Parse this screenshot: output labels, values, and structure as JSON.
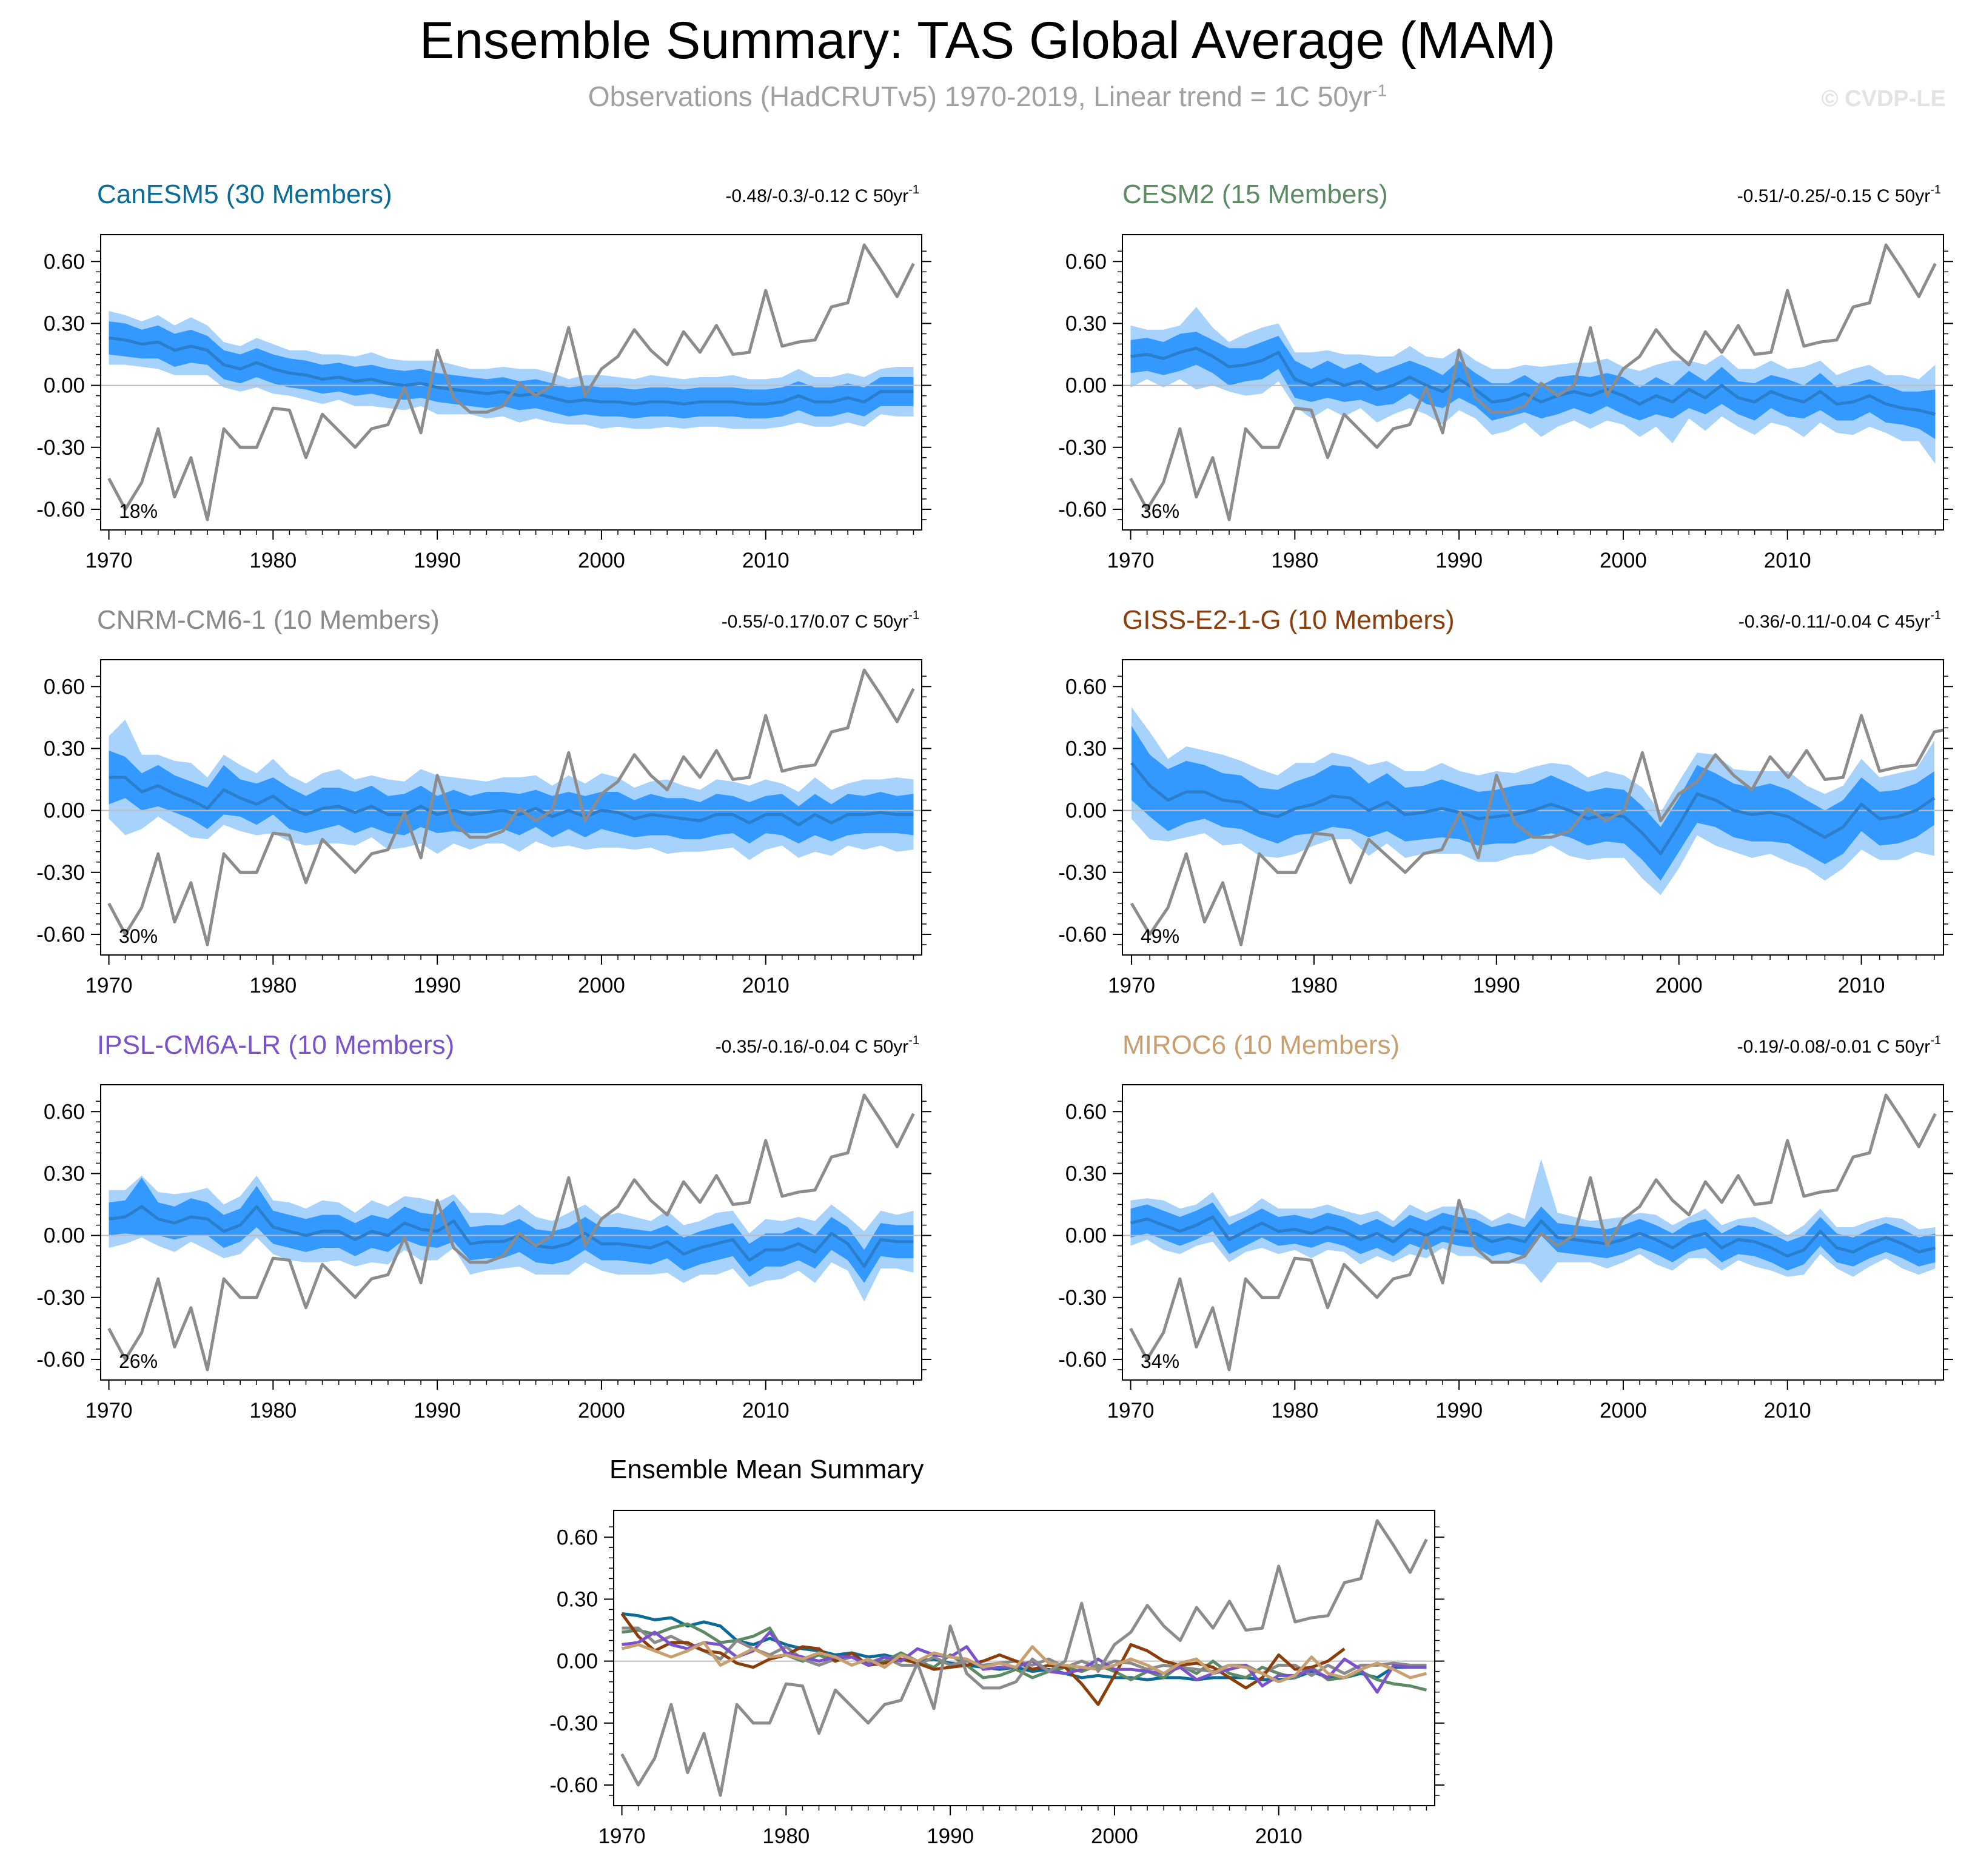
{
  "figure": {
    "title": "Ensemble Summary: TAS Global Average (MAM)",
    "subtitle_main": "Observations (HadCRUTv5) 1970-2019, Linear trend = 1C 50yr",
    "subtitle_sup": "-1",
    "copyright": "© CVDP-LE",
    "trend_sup": "-1"
  },
  "colors": {
    "inner_band": "#3399ff",
    "outer_band": "#a6d2fb",
    "ens_mean_line": "#2a7ecc",
    "observation": "#8c8c8c",
    "zero_line": "#bdbdbd"
  },
  "observations": {
    "name": "HadCRUTv5",
    "x_start": 1970,
    "values": [
      -0.45,
      -0.6,
      -0.47,
      -0.21,
      -0.54,
      -0.35,
      -0.65,
      -0.21,
      -0.3,
      -0.3,
      -0.11,
      -0.12,
      -0.35,
      -0.14,
      -0.22,
      -0.3,
      -0.21,
      -0.19,
      -0.01,
      -0.23,
      0.17,
      -0.06,
      -0.13,
      -0.13,
      -0.1,
      0.01,
      -0.05,
      0.0,
      0.28,
      -0.05,
      0.08,
      0.14,
      0.27,
      0.17,
      0.1,
      0.26,
      0.16,
      0.29,
      0.15,
      0.16,
      0.46,
      0.19,
      0.21,
      0.22,
      0.38,
      0.4,
      0.68,
      0.56,
      0.43,
      0.59
    ]
  },
  "chart_data": [
    {
      "type": "line",
      "title": "CanESM5 (30 Members)",
      "title_color": "#0a6b96",
      "trend_label": "-0.48/-0.3/-0.12 C 50yr",
      "percentile_label": "18%",
      "x_start": 1970,
      "x_ticks": [
        1970,
        1980,
        1990,
        2000,
        2010
      ],
      "y_ticks": [
        0.6,
        0.3,
        0.0,
        -0.3,
        -0.6
      ],
      "y_tick_labels": [
        "0.60",
        "0.30",
        "0.00",
        "-0.30",
        "-0.60"
      ],
      "ylim": [
        -0.7,
        0.73
      ],
      "xlim": [
        1969.5,
        2019.5
      ],
      "ensemble_mean": [
        0.23,
        0.22,
        0.2,
        0.21,
        0.17,
        0.19,
        0.17,
        0.1,
        0.08,
        0.11,
        0.08,
        0.06,
        0.05,
        0.03,
        0.04,
        0.02,
        0.03,
        0.01,
        0.0,
        0.01,
        -0.01,
        -0.02,
        -0.03,
        -0.04,
        -0.03,
        -0.05,
        -0.04,
        -0.06,
        -0.08,
        -0.07,
        -0.08,
        -0.08,
        -0.09,
        -0.08,
        -0.08,
        -0.09,
        -0.08,
        -0.08,
        -0.08,
        -0.09,
        -0.09,
        -0.08,
        -0.05,
        -0.08,
        -0.08,
        -0.06,
        -0.08,
        -0.03,
        -0.03,
        -0.03
      ],
      "spread_inner_half": [
        0.08,
        0.08,
        0.07,
        0.08,
        0.08,
        0.08,
        0.07,
        0.07,
        0.07,
        0.07,
        0.07,
        0.07,
        0.07,
        0.07,
        0.07,
        0.07,
        0.07,
        0.07,
        0.07,
        0.07,
        0.07,
        0.07,
        0.07,
        0.07,
        0.07,
        0.07,
        0.07,
        0.07,
        0.07,
        0.07,
        0.07,
        0.07,
        0.07,
        0.07,
        0.07,
        0.07,
        0.07,
        0.07,
        0.07,
        0.07,
        0.07,
        0.07,
        0.07,
        0.07,
        0.07,
        0.07,
        0.07,
        0.07,
        0.07,
        0.07
      ],
      "spread_outer_half": [
        0.13,
        0.12,
        0.11,
        0.13,
        0.12,
        0.14,
        0.12,
        0.11,
        0.11,
        0.12,
        0.12,
        0.11,
        0.12,
        0.12,
        0.11,
        0.12,
        0.13,
        0.12,
        0.12,
        0.11,
        0.13,
        0.12,
        0.11,
        0.12,
        0.12,
        0.13,
        0.12,
        0.12,
        0.11,
        0.12,
        0.13,
        0.12,
        0.12,
        0.13,
        0.12,
        0.12,
        0.12,
        0.12,
        0.13,
        0.12,
        0.12,
        0.12,
        0.13,
        0.12,
        0.12,
        0.12,
        0.12,
        0.11,
        0.12,
        0.12
      ]
    },
    {
      "type": "line",
      "title": "CESM2 (15 Members)",
      "title_color": "#5c8a62",
      "trend_label": "-0.51/-0.25/-0.15 C 50yr",
      "percentile_label": "36%",
      "x_start": 1970,
      "x_ticks": [
        1970,
        1980,
        1990,
        2000,
        2010
      ],
      "y_ticks": [
        0.6,
        0.3,
        0.0,
        -0.3,
        -0.6
      ],
      "y_tick_labels": [
        "0.60",
        "0.30",
        "0.00",
        "-0.30",
        "-0.60"
      ],
      "ylim": [
        -0.7,
        0.73
      ],
      "xlim": [
        1969.5,
        2019.5
      ],
      "ensemble_mean": [
        0.14,
        0.15,
        0.13,
        0.16,
        0.18,
        0.14,
        0.09,
        0.1,
        0.12,
        0.16,
        0.03,
        0.0,
        0.03,
        0.0,
        0.02,
        -0.02,
        0.0,
        0.04,
        0.0,
        -0.03,
        0.03,
        -0.02,
        -0.08,
        -0.07,
        -0.04,
        -0.08,
        -0.05,
        -0.03,
        -0.05,
        -0.02,
        -0.05,
        -0.09,
        -0.05,
        -0.08,
        -0.02,
        -0.06,
        0.0,
        -0.06,
        -0.08,
        -0.03,
        -0.06,
        -0.08,
        -0.03,
        -0.09,
        -0.08,
        -0.05,
        -0.09,
        -0.11,
        -0.12,
        -0.14
      ],
      "spread_inner_half": [
        0.08,
        0.08,
        0.08,
        0.09,
        0.08,
        0.08,
        0.09,
        0.08,
        0.09,
        0.08,
        0.09,
        0.08,
        0.09,
        0.08,
        0.09,
        0.08,
        0.09,
        0.08,
        0.09,
        0.08,
        0.09,
        0.08,
        0.09,
        0.08,
        0.09,
        0.08,
        0.09,
        0.08,
        0.09,
        0.08,
        0.09,
        0.08,
        0.09,
        0.08,
        0.09,
        0.08,
        0.09,
        0.08,
        0.09,
        0.08,
        0.09,
        0.08,
        0.09,
        0.08,
        0.09,
        0.08,
        0.09,
        0.08,
        0.09,
        0.12
      ],
      "spread_outer_half": [
        0.15,
        0.12,
        0.14,
        0.13,
        0.2,
        0.14,
        0.12,
        0.15,
        0.16,
        0.14,
        0.13,
        0.16,
        0.14,
        0.15,
        0.13,
        0.16,
        0.14,
        0.15,
        0.14,
        0.16,
        0.15,
        0.14,
        0.16,
        0.15,
        0.14,
        0.17,
        0.15,
        0.14,
        0.16,
        0.15,
        0.14,
        0.16,
        0.15,
        0.2,
        0.14,
        0.16,
        0.15,
        0.14,
        0.16,
        0.15,
        0.14,
        0.17,
        0.15,
        0.14,
        0.16,
        0.15,
        0.14,
        0.16,
        0.15,
        0.24
      ]
    },
    {
      "type": "line",
      "title": "CNRM-CM6-1 (10 Members)",
      "title_color": "#8a8a8a",
      "trend_label": "-0.55/-0.17/0.07 C 50yr",
      "percentile_label": "30%",
      "x_start": 1970,
      "x_ticks": [
        1970,
        1980,
        1990,
        2000,
        2010
      ],
      "y_ticks": [
        0.6,
        0.3,
        0.0,
        -0.3,
        -0.6
      ],
      "y_tick_labels": [
        "0.60",
        "0.30",
        "0.00",
        "-0.30",
        "-0.60"
      ],
      "ylim": [
        -0.7,
        0.73
      ],
      "xlim": [
        1969.5,
        2019.5
      ],
      "ensemble_mean": [
        0.16,
        0.16,
        0.09,
        0.12,
        0.08,
        0.05,
        0.01,
        0.1,
        0.06,
        0.03,
        0.07,
        0.01,
        -0.02,
        0.01,
        0.02,
        -0.01,
        0.02,
        -0.02,
        -0.02,
        0.02,
        -0.02,
        0.0,
        -0.02,
        -0.01,
        0.0,
        -0.02,
        0.01,
        -0.03,
        0.0,
        -0.03,
        0.0,
        -0.01,
        -0.04,
        -0.02,
        -0.03,
        -0.04,
        -0.05,
        -0.02,
        -0.02,
        -0.06,
        -0.02,
        -0.02,
        -0.07,
        -0.02,
        -0.06,
        -0.02,
        -0.02,
        -0.01,
        -0.02,
        -0.02
      ],
      "spread_inner_half": [
        0.13,
        0.1,
        0.09,
        0.1,
        0.09,
        0.09,
        0.1,
        0.12,
        0.09,
        0.1,
        0.09,
        0.1,
        0.09,
        0.1,
        0.09,
        0.1,
        0.1,
        0.09,
        0.1,
        0.1,
        0.09,
        0.1,
        0.09,
        0.1,
        0.09,
        0.1,
        0.09,
        0.1,
        0.09,
        0.1,
        0.09,
        0.1,
        0.09,
        0.1,
        0.09,
        0.1,
        0.09,
        0.1,
        0.09,
        0.1,
        0.09,
        0.1,
        0.09,
        0.1,
        0.09,
        0.1,
        0.09,
        0.1,
        0.09,
        0.1
      ],
      "spread_outer_half": [
        0.2,
        0.28,
        0.18,
        0.15,
        0.16,
        0.18,
        0.15,
        0.17,
        0.16,
        0.15,
        0.18,
        0.16,
        0.15,
        0.17,
        0.18,
        0.16,
        0.15,
        0.17,
        0.16,
        0.18,
        0.19,
        0.16,
        0.17,
        0.15,
        0.16,
        0.18,
        0.16,
        0.15,
        0.17,
        0.16,
        0.18,
        0.17,
        0.15,
        0.16,
        0.18,
        0.16,
        0.15,
        0.17,
        0.16,
        0.18,
        0.17,
        0.15,
        0.16,
        0.18,
        0.16,
        0.15,
        0.17,
        0.16,
        0.18,
        0.17
      ]
    },
    {
      "type": "line",
      "title": "GISS-E2-1-G (10 Members)",
      "title_color": "#8b3e0b",
      "trend_label": "-0.36/-0.11/-0.04 C 45yr",
      "percentile_label": "49%",
      "x_start": 1970,
      "x_ticks": [
        1970,
        1980,
        1990,
        2000,
        2010
      ],
      "y_ticks": [
        0.6,
        0.3,
        0.0,
        -0.3,
        -0.6
      ],
      "y_tick_labels": [
        "0.60",
        "0.30",
        "0.00",
        "-0.30",
        "-0.60"
      ],
      "ylim": [
        -0.7,
        0.73
      ],
      "xlim": [
        1969.5,
        2014.5
      ],
      "ensemble_mean": [
        0.23,
        0.12,
        0.05,
        0.09,
        0.09,
        0.05,
        0.04,
        -0.01,
        -0.03,
        0.01,
        0.03,
        0.07,
        0.06,
        0.0,
        0.04,
        -0.02,
        -0.01,
        0.01,
        -0.01,
        -0.04,
        -0.03,
        -0.02,
        0.0,
        0.03,
        0.0,
        -0.04,
        -0.02,
        -0.03,
        -0.11,
        -0.21,
        -0.07,
        0.08,
        0.05,
        0.0,
        -0.02,
        -0.01,
        -0.03,
        -0.08,
        -0.13,
        -0.08,
        0.03,
        -0.04,
        -0.03,
        0.0,
        0.06
      ],
      "spread_inner_half": [
        0.18,
        0.15,
        0.15,
        0.15,
        0.13,
        0.13,
        0.13,
        0.12,
        0.13,
        0.13,
        0.14,
        0.15,
        0.15,
        0.13,
        0.14,
        0.13,
        0.13,
        0.14,
        0.13,
        0.13,
        0.13,
        0.14,
        0.13,
        0.14,
        0.13,
        0.13,
        0.13,
        0.13,
        0.13,
        0.13,
        0.13,
        0.14,
        0.13,
        0.13,
        0.13,
        0.14,
        0.13,
        0.13,
        0.13,
        0.13,
        0.13,
        0.13,
        0.13,
        0.13,
        0.13
      ],
      "spread_outer_half": [
        0.27,
        0.26,
        0.2,
        0.22,
        0.2,
        0.22,
        0.2,
        0.21,
        0.2,
        0.22,
        0.2,
        0.21,
        0.2,
        0.22,
        0.2,
        0.21,
        0.2,
        0.22,
        0.2,
        0.21,
        0.22,
        0.2,
        0.21,
        0.2,
        0.22,
        0.2,
        0.21,
        0.2,
        0.22,
        0.2,
        0.21,
        0.2,
        0.22,
        0.2,
        0.21,
        0.2,
        0.22,
        0.2,
        0.21,
        0.2,
        0.22,
        0.2,
        0.21,
        0.2,
        0.28
      ]
    },
    {
      "type": "line",
      "title": "IPSL-CM6A-LR (10 Members)",
      "title_color": "#7a52cc",
      "trend_label": "-0.35/-0.16/-0.04 C 50yr",
      "percentile_label": "26%",
      "x_start": 1970,
      "x_ticks": [
        1970,
        1980,
        1990,
        2000,
        2010
      ],
      "y_ticks": [
        0.6,
        0.3,
        0.0,
        -0.3,
        -0.6
      ],
      "y_tick_labels": [
        "0.60",
        "0.30",
        "0.00",
        "-0.30",
        "-0.60"
      ],
      "ylim": [
        -0.7,
        0.73
      ],
      "xlim": [
        1969.5,
        2019.5
      ],
      "ensemble_mean": [
        0.08,
        0.09,
        0.14,
        0.08,
        0.06,
        0.09,
        0.08,
        0.02,
        0.05,
        0.14,
        0.04,
        0.02,
        0.0,
        0.02,
        0.02,
        -0.02,
        0.02,
        0.0,
        0.06,
        0.03,
        0.02,
        0.07,
        -0.04,
        -0.03,
        -0.03,
        0.0,
        -0.05,
        -0.06,
        -0.04,
        0.01,
        -0.04,
        -0.04,
        -0.05,
        -0.06,
        -0.03,
        -0.09,
        -0.06,
        -0.04,
        -0.02,
        -0.12,
        -0.07,
        -0.07,
        -0.04,
        -0.08,
        0.01,
        -0.04,
        -0.15,
        -0.02,
        -0.03,
        -0.03
      ],
      "spread_inner_half": [
        0.08,
        0.08,
        0.14,
        0.08,
        0.08,
        0.09,
        0.08,
        0.08,
        0.08,
        0.1,
        0.08,
        0.08,
        0.08,
        0.08,
        0.08,
        0.08,
        0.08,
        0.08,
        0.08,
        0.08,
        0.08,
        0.1,
        0.08,
        0.08,
        0.08,
        0.08,
        0.08,
        0.08,
        0.08,
        0.08,
        0.08,
        0.08,
        0.08,
        0.08,
        0.08,
        0.08,
        0.08,
        0.08,
        0.08,
        0.08,
        0.08,
        0.08,
        0.08,
        0.08,
        0.08,
        0.08,
        0.08,
        0.08,
        0.08,
        0.08
      ],
      "spread_outer_half": [
        0.14,
        0.13,
        0.15,
        0.13,
        0.14,
        0.12,
        0.15,
        0.13,
        0.14,
        0.15,
        0.13,
        0.14,
        0.13,
        0.15,
        0.14,
        0.13,
        0.15,
        0.14,
        0.13,
        0.15,
        0.14,
        0.13,
        0.15,
        0.14,
        0.13,
        0.15,
        0.14,
        0.13,
        0.15,
        0.14,
        0.13,
        0.15,
        0.14,
        0.13,
        0.15,
        0.14,
        0.13,
        0.15,
        0.14,
        0.13,
        0.15,
        0.14,
        0.13,
        0.15,
        0.14,
        0.13,
        0.17,
        0.14,
        0.13,
        0.15
      ]
    },
    {
      "type": "line",
      "title": "MIROC6 (10 Members)",
      "title_color": "#c8a070",
      "trend_label": "-0.19/-0.08/-0.01 C 50yr",
      "percentile_label": "34%",
      "x_start": 1970,
      "x_ticks": [
        1970,
        1980,
        1990,
        2000,
        2010
      ],
      "y_ticks": [
        0.6,
        0.3,
        0.0,
        -0.3,
        -0.6
      ],
      "y_tick_labels": [
        "0.60",
        "0.30",
        "0.00",
        "-0.30",
        "-0.60"
      ],
      "ylim": [
        -0.7,
        0.73
      ],
      "xlim": [
        1969.5,
        2019.5
      ],
      "ensemble_mean": [
        0.06,
        0.08,
        0.05,
        0.02,
        0.05,
        0.09,
        -0.02,
        0.02,
        0.06,
        0.02,
        0.03,
        0.01,
        0.04,
        0.02,
        -0.02,
        0.01,
        -0.03,
        0.03,
        0.0,
        0.04,
        0.02,
        0.01,
        -0.03,
        -0.01,
        -0.03,
        0.07,
        -0.01,
        -0.02,
        -0.03,
        -0.04,
        -0.02,
        0.01,
        -0.02,
        -0.06,
        -0.01,
        0.01,
        -0.06,
        -0.02,
        -0.03,
        -0.06,
        -0.1,
        -0.07,
        0.02,
        -0.06,
        -0.08,
        -0.04,
        -0.01,
        -0.04,
        -0.08,
        -0.06
      ],
      "spread_inner_half": [
        0.07,
        0.07,
        0.07,
        0.07,
        0.07,
        0.07,
        0.07,
        0.07,
        0.07,
        0.07,
        0.07,
        0.07,
        0.07,
        0.07,
        0.07,
        0.07,
        0.07,
        0.07,
        0.07,
        0.07,
        0.07,
        0.07,
        0.07,
        0.07,
        0.07,
        0.07,
        0.07,
        0.07,
        0.07,
        0.07,
        0.07,
        0.07,
        0.07,
        0.07,
        0.07,
        0.07,
        0.07,
        0.07,
        0.07,
        0.07,
        0.07,
        0.07,
        0.07,
        0.07,
        0.07,
        0.07,
        0.07,
        0.07,
        0.07,
        0.07
      ],
      "spread_outer_half": [
        0.11,
        0.1,
        0.12,
        0.11,
        0.1,
        0.12,
        0.11,
        0.1,
        0.12,
        0.11,
        0.1,
        0.12,
        0.11,
        0.1,
        0.12,
        0.11,
        0.1,
        0.12,
        0.11,
        0.1,
        0.12,
        0.11,
        0.1,
        0.12,
        0.11,
        0.3,
        0.12,
        0.11,
        0.1,
        0.12,
        0.11,
        0.1,
        0.12,
        0.11,
        0.1,
        0.12,
        0.11,
        0.1,
        0.12,
        0.11,
        0.1,
        0.12,
        0.11,
        0.1,
        0.12,
        0.11,
        0.1,
        0.12,
        0.11,
        0.1
      ]
    },
    {
      "type": "line",
      "title": "Ensemble Mean Summary",
      "title_color": "#000000",
      "x_start": 1970,
      "x_ticks": [
        1970,
        1980,
        1990,
        2000,
        2010
      ],
      "y_ticks": [
        0.6,
        0.3,
        0.0,
        -0.3,
        -0.6
      ],
      "y_tick_labels": [
        "0.60",
        "0.30",
        "0.00",
        "-0.30",
        "-0.60"
      ],
      "ylim": [
        -0.7,
        0.73
      ],
      "xlim": [
        1969.5,
        2019.5
      ],
      "series": [
        {
          "name": "CanESM5",
          "color": "#0a6b96",
          "ref": 0
        },
        {
          "name": "CESM2",
          "color": "#5c8a62",
          "ref": 1
        },
        {
          "name": "CNRM-CM6-1",
          "color": "#8a8a8a",
          "ref": 2
        },
        {
          "name": "GISS-E2-1-G",
          "color": "#8b3e0b",
          "ref": 3
        },
        {
          "name": "IPSL-CM6A-LR",
          "color": "#7a52cc",
          "ref": 4
        },
        {
          "name": "MIROC6",
          "color": "#c8a070",
          "ref": 5
        }
      ]
    }
  ]
}
